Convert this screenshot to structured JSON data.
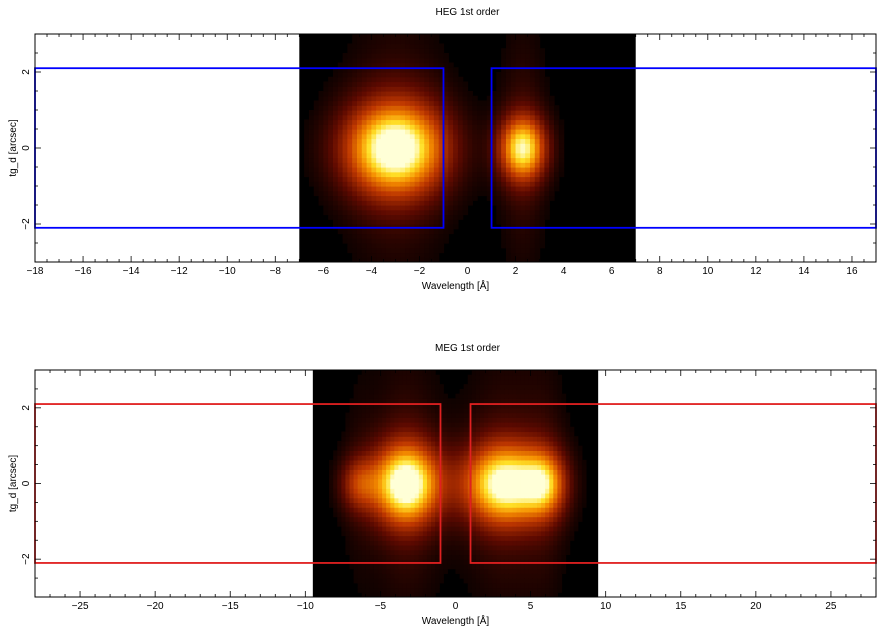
{
  "chart_data": [
    {
      "type": "heatmap",
      "title": "HEG 1st order",
      "xlabel": "Wavelength [Å]",
      "ylabel": "tg_d [arcsec]",
      "xlim": [
        -18,
        17
      ],
      "ylim": [
        -3,
        3
      ],
      "xticks": [
        -18,
        -16,
        -14,
        -12,
        -10,
        -8,
        -6,
        -4,
        -2,
        0,
        2,
        4,
        6,
        8,
        10,
        12,
        14,
        16
      ],
      "yticks": [
        -2,
        0,
        2
      ],
      "image_extent_x": [
        -7,
        7
      ],
      "box_color": "#0000ff",
      "region_boxes": [
        {
          "x": [
            -18,
            -1
          ],
          "y": [
            -2.1,
            2.1
          ]
        },
        {
          "x": [
            1,
            17
          ],
          "y": [
            -2.1,
            2.1
          ]
        }
      ],
      "emission_blobs": [
        {
          "x": -3.0,
          "y": 0.0,
          "sx": 1.5,
          "sy": 0.85,
          "peak": 1.0
        },
        {
          "x": 2.3,
          "y": 0.0,
          "sx": 0.7,
          "sy": 0.6,
          "peak": 0.85
        }
      ]
    },
    {
      "type": "heatmap",
      "title": "MEG 1st order",
      "xlabel": "Wavelength [Å]",
      "ylabel": "tg_d [arcsec]",
      "xlim": [
        -28,
        28
      ],
      "ylim": [
        -3,
        3
      ],
      "xticks": [
        -25,
        -20,
        -15,
        -10,
        -5,
        0,
        5,
        10,
        15,
        20,
        25
      ],
      "yticks": [
        -2,
        0,
        2
      ],
      "image_extent_x": [
        -9.5,
        9.5
      ],
      "box_color": "#e02020",
      "region_boxes": [
        {
          "x": [
            -28,
            -1
          ],
          "y": [
            -2.1,
            2.1
          ]
        },
        {
          "x": [
            1,
            28
          ],
          "y": [
            -2.1,
            2.1
          ]
        }
      ],
      "emission_blobs": [
        {
          "x": -3.3,
          "y": 0.0,
          "sx": 1.6,
          "sy": 0.75,
          "peak": 1.0
        },
        {
          "x": 3.3,
          "y": 0.0,
          "sx": 2.0,
          "sy": 0.75,
          "peak": 0.95
        },
        {
          "x": 6.0,
          "y": 0.0,
          "sx": 1.0,
          "sy": 0.6,
          "peak": 0.5
        },
        {
          "x": -6.5,
          "y": 0.0,
          "sx": 0.9,
          "sy": 0.5,
          "peak": 0.35
        }
      ]
    }
  ]
}
